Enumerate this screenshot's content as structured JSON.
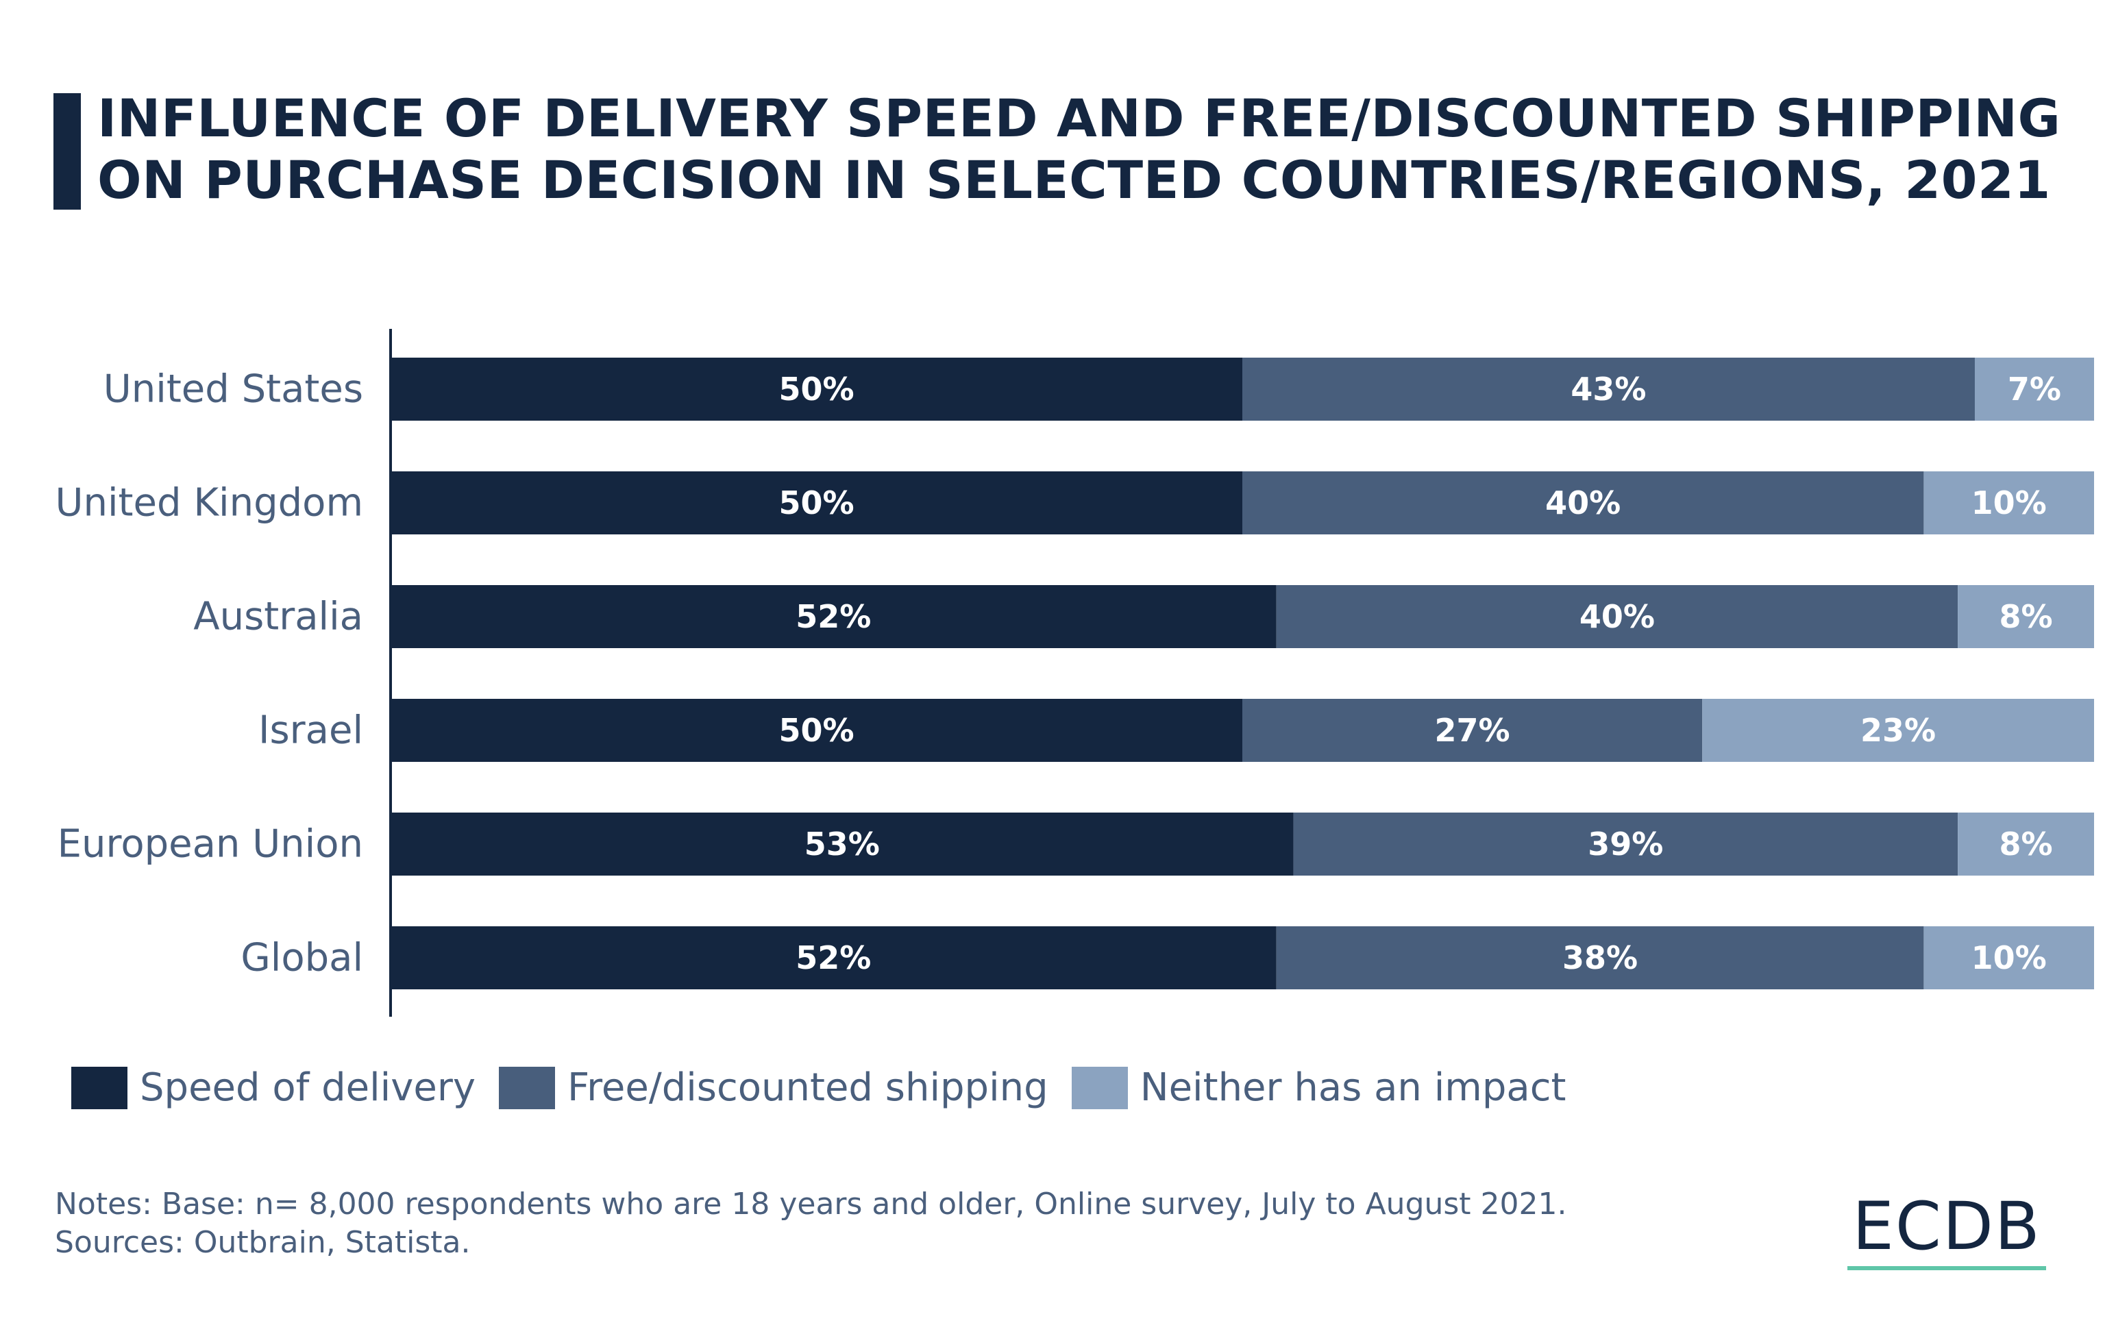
{
  "title": {
    "line1": "INFLUENCE OF DELIVERY SPEED AND FREE/DISCOUNTED SHIPPING",
    "line2": "ON PURCHASE DECISION IN SELECTED COUNTRIES/REGIONS, 2021"
  },
  "chart_data": {
    "type": "bar",
    "orientation": "horizontal",
    "stacked": true,
    "categories": [
      "United States",
      "United Kingdom",
      "Australia",
      "Israel",
      "European Union",
      "Global"
    ],
    "series": [
      {
        "name": "Speed of delivery",
        "values": [
          50,
          50,
          52,
          50,
          53,
          52
        ],
        "color": "#142640"
      },
      {
        "name": "Free/discounted shipping",
        "values": [
          43,
          40,
          40,
          27,
          39,
          38
        ],
        "color": "#485e7c"
      },
      {
        "name": "Neither has an impact",
        "values": [
          7,
          10,
          8,
          23,
          8,
          10
        ],
        "color": "#8ba3c0"
      }
    ],
    "value_suffix": "%",
    "xlim": [
      0,
      100
    ],
    "grid": false,
    "legend_position": "bottom-left"
  },
  "notes": {
    "line1": "Notes: Base: n= 8,000 respondents who are 18 years and older, Online survey, July to August 2021.",
    "line2": "Sources: Outbrain, Statista."
  },
  "logo": {
    "text": "ECDB"
  },
  "colors": {
    "title": "#142640",
    "category_label": "#4a5f7d",
    "bar_label": "#ffffff",
    "axis": "#142640",
    "logo_accent": "#5fc6a8"
  }
}
